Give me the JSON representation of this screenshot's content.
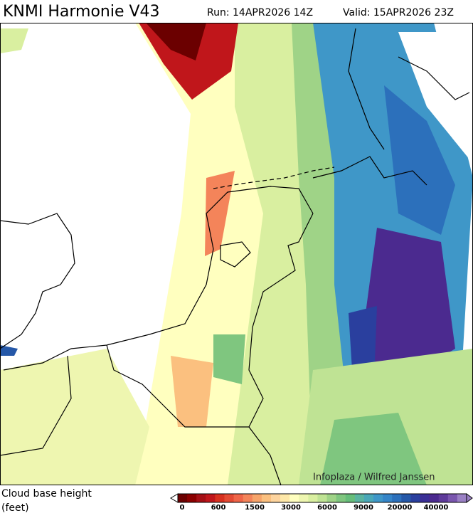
{
  "header": {
    "title": "KNMI Harmonie V43",
    "run": "Run: 14APR2026 14Z",
    "valid": "Valid: 15APR2026 23Z"
  },
  "credit": "Infoplaza / Wilfred Janssen",
  "legend": {
    "label_line1": "Cloud base height",
    "label_line2": "(feet)",
    "ticks": [
      "0",
      "600",
      "1500",
      "3000",
      "6000",
      "9000",
      "20000",
      "40000"
    ],
    "colors": [
      "#6b0000",
      "#8b0000",
      "#a50f15",
      "#c0161b",
      "#d7301f",
      "#e34a33",
      "#ef6548",
      "#f4845a",
      "#f7a46a",
      "#fbc07f",
      "#fdd49e",
      "#fee8a8",
      "#ffffbf",
      "#eef6b0",
      "#d9efa0",
      "#bfe394",
      "#9fd387",
      "#7fc67f",
      "#66bd7a",
      "#5ab4a0",
      "#4aa8b8",
      "#3f97c8",
      "#3585c8",
      "#2c70bb",
      "#2558a8",
      "#2a3f9e",
      "#3a2f96",
      "#4b2a8f",
      "#5e3a9a",
      "#7a56ae",
      "#9a80c4"
    ]
  }
}
